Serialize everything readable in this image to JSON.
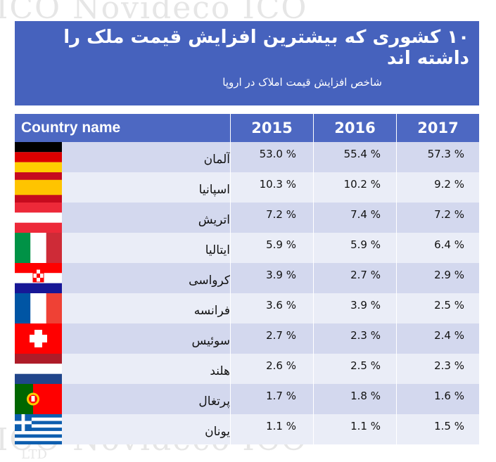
{
  "watermark": {
    "top": "ICO   Novideco   ICO",
    "bottom": "ICO   Novideco   ICO",
    "ltd": "LTD"
  },
  "header": {
    "title": "۱۰ کشوری که بیشترین افزایش قیمت ملک را داشته اند",
    "subtitle": "شاخص افزایش قیمت املاک در اروپا"
  },
  "table": {
    "name_header": "Country name",
    "years": [
      "2015",
      "2016",
      "2017"
    ],
    "rows": [
      {
        "country": "آلمان",
        "flag": "germany-flag-icon",
        "v2015": "53.0 %",
        "v2016": "55.4 %",
        "v2017": "57.3 %"
      },
      {
        "country": "اسپانیا",
        "flag": "spain-flag-icon",
        "v2015": "10.3 %",
        "v2016": "10.2 %",
        "v2017": "9.2 %"
      },
      {
        "country": "اتریش",
        "flag": "austria-flag-icon",
        "v2015": "7.2 %",
        "v2016": "7.4 %",
        "v2017": "7.2 %"
      },
      {
        "country": "ایتالیا",
        "flag": "italy-flag-icon",
        "v2015": "5.9 %",
        "v2016": "5.9 %",
        "v2017": "6.4 %"
      },
      {
        "country": "کرواسی",
        "flag": "croatia-flag-icon",
        "v2015": "3.9 %",
        "v2016": "2.7 %",
        "v2017": "2.9 %"
      },
      {
        "country": "فرانسه",
        "flag": "france-flag-icon",
        "v2015": "3.6 %",
        "v2016": "3.9 %",
        "v2017": "2.5 %"
      },
      {
        "country": "سوئیس",
        "flag": "switzerland-flag-icon",
        "v2015": "2.7 %",
        "v2016": "2.3 %",
        "v2017": "2.4 %"
      },
      {
        "country": "هلند",
        "flag": "netherlands-flag-icon",
        "v2015": "2.6 %",
        "v2016": "2.5 %",
        "v2017": "2.3 %"
      },
      {
        "country": "پرتغال",
        "flag": "portugal-flag-icon",
        "v2015": "1.7 %",
        "v2016": "1.8 %",
        "v2017": "1.6 %"
      },
      {
        "country": "یونان",
        "flag": "greece-flag-icon",
        "v2015": "1.1 %",
        "v2016": "1.1 %",
        "v2017": "1.5 %"
      }
    ]
  },
  "colors": {
    "header_bg": "#4662bd",
    "row_odd": "#d3d8ee",
    "row_even": "#eaedf7"
  }
}
